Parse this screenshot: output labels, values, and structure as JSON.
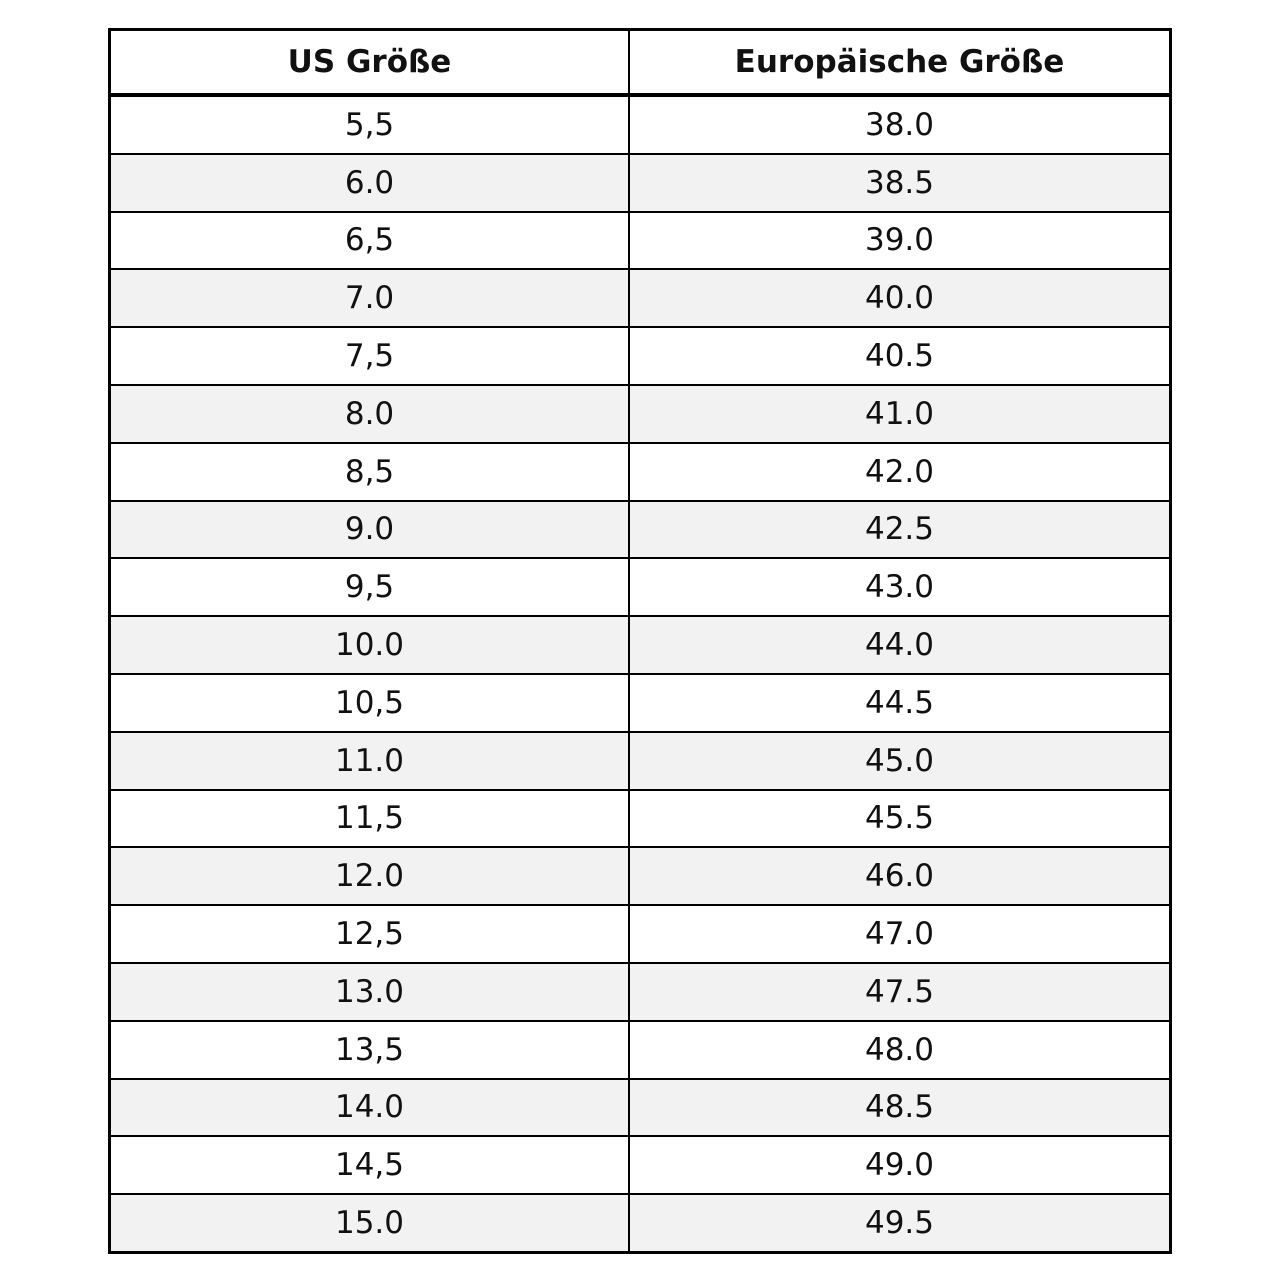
{
  "table": {
    "header": [
      "US Größe",
      "Europäische Größe"
    ],
    "rows": [
      [
        "5,5",
        "38.0"
      ],
      [
        "6.0",
        "38.5"
      ],
      [
        "6,5",
        "39.0"
      ],
      [
        "7.0",
        "40.0"
      ],
      [
        "7,5",
        "40.5"
      ],
      [
        "8.0",
        "41.0"
      ],
      [
        "8,5",
        "42.0"
      ],
      [
        "9.0",
        "42.5"
      ],
      [
        "9,5",
        "43.0"
      ],
      [
        "10.0",
        "44.0"
      ],
      [
        "10,5",
        "44.5"
      ],
      [
        "11.0",
        "45.0"
      ],
      [
        "11,5",
        "45.5"
      ],
      [
        "12.0",
        "46.0"
      ],
      [
        "12,5",
        "47.0"
      ],
      [
        "13.0",
        "47.5"
      ],
      [
        "13,5",
        "48.0"
      ],
      [
        "14.0",
        "48.5"
      ],
      [
        "14,5",
        "49.0"
      ],
      [
        "15.0",
        "49.5"
      ]
    ]
  }
}
